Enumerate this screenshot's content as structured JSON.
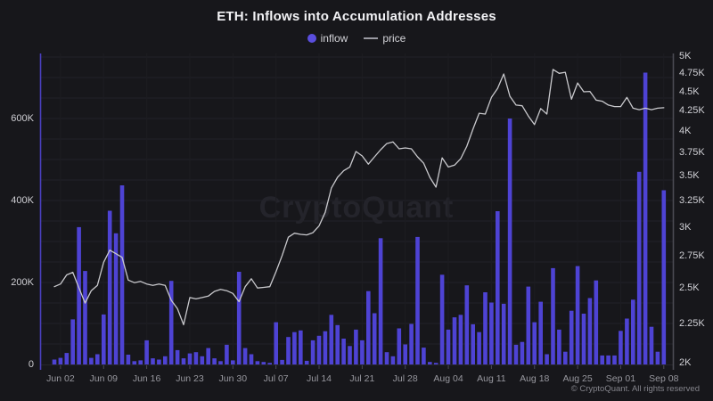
{
  "header": {
    "title": "ETH: Inflows into Accumulation Addresses"
  },
  "legend": {
    "inflow_label": "inflow",
    "price_label": "price"
  },
  "watermark": {
    "text": "CryptoQuant"
  },
  "footer": {
    "text": "© CryptoQuant. All rights reserved"
  },
  "colors": {
    "background": "#17171b",
    "bar": "#4e43d4",
    "price_line": "#c9c9cd",
    "grid": "#222228",
    "grid_vertical": "#1d1d22",
    "axis_left": "#4a40c0",
    "axis_right": "#4b4b53",
    "baseline": "#26262c",
    "tick_mark": "#4b4b53",
    "label_text": "#cfcfd4",
    "x_label_text": "#97979e"
  },
  "chart_data": {
    "type": "bar+line",
    "title": "ETH: Inflows into Accumulation Addresses",
    "legend_position": "top",
    "grid": "faint horizontal every 50K, faint vertical weekly",
    "x": [
      "Jun 01",
      "Jun 02",
      "Jun 03",
      "Jun 04",
      "Jun 05",
      "Jun 06",
      "Jun 07",
      "Jun 08",
      "Jun 09",
      "Jun 10",
      "Jun 11",
      "Jun 12",
      "Jun 13",
      "Jun 14",
      "Jun 15",
      "Jun 16",
      "Jun 17",
      "Jun 18",
      "Jun 19",
      "Jun 20",
      "Jun 21",
      "Jun 22",
      "Jun 23",
      "Jun 24",
      "Jun 25",
      "Jun 26",
      "Jun 27",
      "Jun 28",
      "Jun 29",
      "Jun 30",
      "Jul 01",
      "Jul 02",
      "Jul 03",
      "Jul 04",
      "Jul 05",
      "Jul 06",
      "Jul 07",
      "Jul 08",
      "Jul 09",
      "Jul 10",
      "Jul 11",
      "Jul 12",
      "Jul 13",
      "Jul 14",
      "Jul 15",
      "Jul 16",
      "Jul 17",
      "Jul 18",
      "Jul 19",
      "Jul 20",
      "Jul 21",
      "Jul 22",
      "Jul 23",
      "Jul 24",
      "Jul 25",
      "Jul 26",
      "Jul 27",
      "Jul 28",
      "Jul 29",
      "Jul 30",
      "Jul 31",
      "Aug 01",
      "Aug 02",
      "Aug 03",
      "Aug 04",
      "Aug 05",
      "Aug 06",
      "Aug 07",
      "Aug 08",
      "Aug 09",
      "Aug 10",
      "Aug 11",
      "Aug 12",
      "Aug 13",
      "Aug 14",
      "Aug 15",
      "Aug 16",
      "Aug 17",
      "Aug 18",
      "Aug 19",
      "Aug 20",
      "Aug 21",
      "Aug 22",
      "Aug 23",
      "Aug 24",
      "Aug 25",
      "Aug 26",
      "Aug 27",
      "Aug 28",
      "Aug 29",
      "Aug 30",
      "Aug 31",
      "Sep 01",
      "Sep 02",
      "Sep 03",
      "Sep 04",
      "Sep 05",
      "Sep 06",
      "Sep 07",
      "Sep 08"
    ],
    "series": [
      {
        "name": "inflow",
        "type": "bar",
        "axis": "left",
        "unit": "thousand addresses (K)",
        "color": "#4e43d4",
        "values": [
          12,
          16,
          28,
          110,
          335,
          228,
          16,
          25,
          122,
          375,
          320,
          437,
          24,
          8,
          10,
          59,
          15,
          12,
          20,
          204,
          35,
          15,
          27,
          30,
          20,
          40,
          15,
          8,
          48,
          10,
          226,
          40,
          25,
          8,
          6,
          4,
          103,
          11,
          67,
          79,
          83,
          9,
          59,
          70,
          81,
          121,
          96,
          63,
          45,
          85,
          59,
          179,
          125,
          308,
          30,
          20,
          88,
          49,
          99,
          311,
          41,
          6,
          4,
          219,
          85,
          115,
          121,
          193,
          98,
          79,
          176,
          151,
          374,
          148,
          600,
          48,
          55,
          190,
          103,
          153,
          25,
          235,
          85,
          31,
          131,
          240,
          124,
          162,
          205,
          22,
          22,
          22,
          82,
          112,
          158,
          470,
          712,
          92,
          31,
          425
        ]
      },
      {
        "name": "price",
        "type": "line",
        "axis": "right",
        "unit": "USD",
        "color": "#c9c9cd",
        "values": [
          2510,
          2530,
          2600,
          2620,
          2500,
          2390,
          2480,
          2520,
          2700,
          2800,
          2770,
          2740,
          2560,
          2540,
          2550,
          2530,
          2520,
          2530,
          2520,
          2410,
          2350,
          2240,
          2430,
          2420,
          2430,
          2440,
          2475,
          2490,
          2480,
          2460,
          2400,
          2510,
          2570,
          2500,
          2505,
          2510,
          2625,
          2755,
          2910,
          2945,
          2935,
          2930,
          2950,
          3010,
          3135,
          3370,
          3480,
          3550,
          3590,
          3760,
          3710,
          3620,
          3700,
          3780,
          3850,
          3870,
          3790,
          3800,
          3790,
          3700,
          3630,
          3480,
          3380,
          3690,
          3590,
          3610,
          3680,
          3820,
          4020,
          4215,
          4205,
          4420,
          4540,
          4740,
          4435,
          4320,
          4310,
          4180,
          4075,
          4275,
          4205,
          4805,
          4750,
          4765,
          4395,
          4615,
          4495,
          4500,
          4385,
          4370,
          4320,
          4300,
          4300,
          4420,
          4280,
          4260,
          4280,
          4260,
          4280,
          4285
        ]
      }
    ],
    "left_axis": {
      "scale": "linear",
      "ticks": [
        {
          "label": "0",
          "value": 0
        },
        {
          "label": "200K",
          "value": 200
        },
        {
          "label": "400K",
          "value": 400
        },
        {
          "label": "600K",
          "value": 600
        }
      ]
    },
    "right_axis": {
      "scale": "log",
      "range": [
        2000,
        5000
      ],
      "ticks": [
        {
          "label": "5K",
          "value": 5000
        },
        {
          "label": "4.75K",
          "value": 4750
        },
        {
          "label": "4.5K",
          "value": 4500
        },
        {
          "label": "4.25K",
          "value": 4250
        },
        {
          "label": "4K",
          "value": 4000
        },
        {
          "label": "3.75K",
          "value": 3750
        },
        {
          "label": "3.5K",
          "value": 3500
        },
        {
          "label": "3.25K",
          "value": 3250
        },
        {
          "label": "3K",
          "value": 3000
        },
        {
          "label": "2.75K",
          "value": 2750
        },
        {
          "label": "2.5K",
          "value": 2500
        },
        {
          "label": "2.25K",
          "value": 2250
        },
        {
          "label": "2K",
          "value": 2000
        }
      ]
    },
    "x_axis": {
      "tick_labels": [
        "Jun 02",
        "Jun 09",
        "Jun 16",
        "Jun 23",
        "Jun 30",
        "Jul 07",
        "Jul 14",
        "Jul 21",
        "Jul 28",
        "Aug 04",
        "Aug 11",
        "Aug 18",
        "Aug 25",
        "Sep 01",
        "Sep 08"
      ],
      "tick_day_indices": [
        1,
        8,
        15,
        22,
        29,
        36,
        43,
        50,
        57,
        64,
        71,
        78,
        85,
        92,
        99
      ]
    }
  }
}
